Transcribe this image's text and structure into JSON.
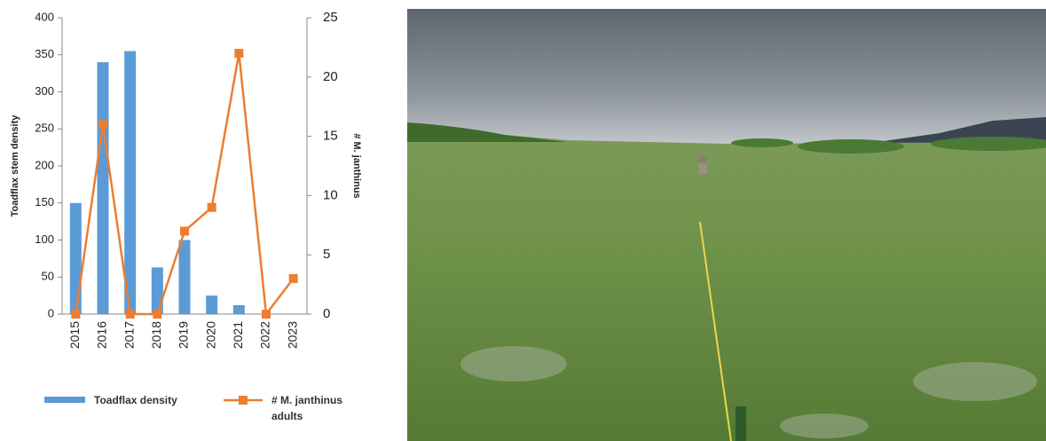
{
  "chart_data": {
    "type": "combo",
    "categories": [
      "2015",
      "2016",
      "2017",
      "2018",
      "2019",
      "2020",
      "2021",
      "2022",
      "2023"
    ],
    "series": [
      {
        "name": "Toadflax density",
        "type": "bar",
        "color": "#5b9bd5",
        "values": [
          150,
          340,
          355,
          63,
          100,
          25,
          12,
          0,
          0
        ]
      },
      {
        "name": "# M. janthinus adults",
        "type": "line",
        "axis": "y2",
        "color": "#ed7d31",
        "values": [
          0,
          16,
          0,
          0,
          7,
          9,
          22,
          0,
          3
        ]
      }
    ],
    "y_label": "Toadflax stem density",
    "y2_label": "# M. janthinus",
    "ylim": [
      0,
      400
    ],
    "yticks": [
      0,
      50,
      100,
      150,
      200,
      250,
      300,
      350,
      400
    ],
    "y2lim": [
      0,
      25
    ],
    "y2ticks": [
      0,
      5,
      10,
      15,
      20,
      25
    ],
    "grid": false
  }
}
